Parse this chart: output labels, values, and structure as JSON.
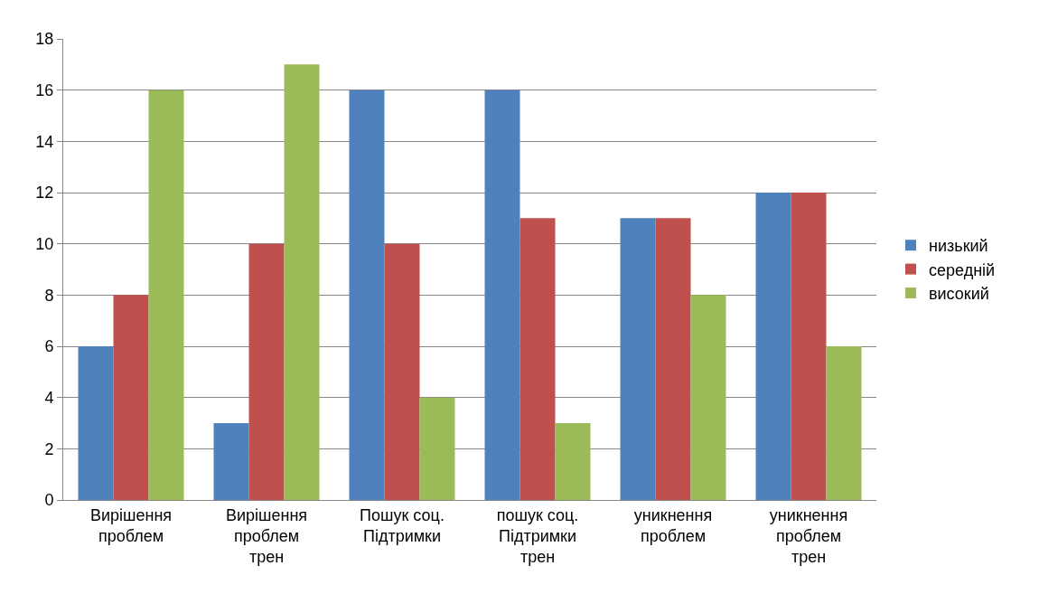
{
  "chart_data": {
    "type": "bar",
    "categories": [
      "Вирішення проблем",
      "Вирішення проблем трен",
      "Пошук соц. Підтримки",
      "пошук соц. Підтримки трен",
      "уникнення проблем",
      "уникнення проблем трен"
    ],
    "series": [
      {
        "name": "низький",
        "color": "#4f81bd",
        "values": [
          6,
          3,
          16,
          16,
          11,
          12
        ]
      },
      {
        "name": "середній",
        "color": "#c0504d",
        "values": [
          8,
          10,
          10,
          11,
          11,
          12
        ]
      },
      {
        "name": "високий",
        "color": "#9bbb59",
        "values": [
          16,
          17,
          4,
          3,
          8,
          6
        ]
      }
    ],
    "ylim": [
      0,
      18
    ],
    "yticks": [
      0,
      2,
      4,
      6,
      8,
      10,
      12,
      14,
      16,
      18
    ],
    "grid": "y",
    "legend": "right"
  }
}
